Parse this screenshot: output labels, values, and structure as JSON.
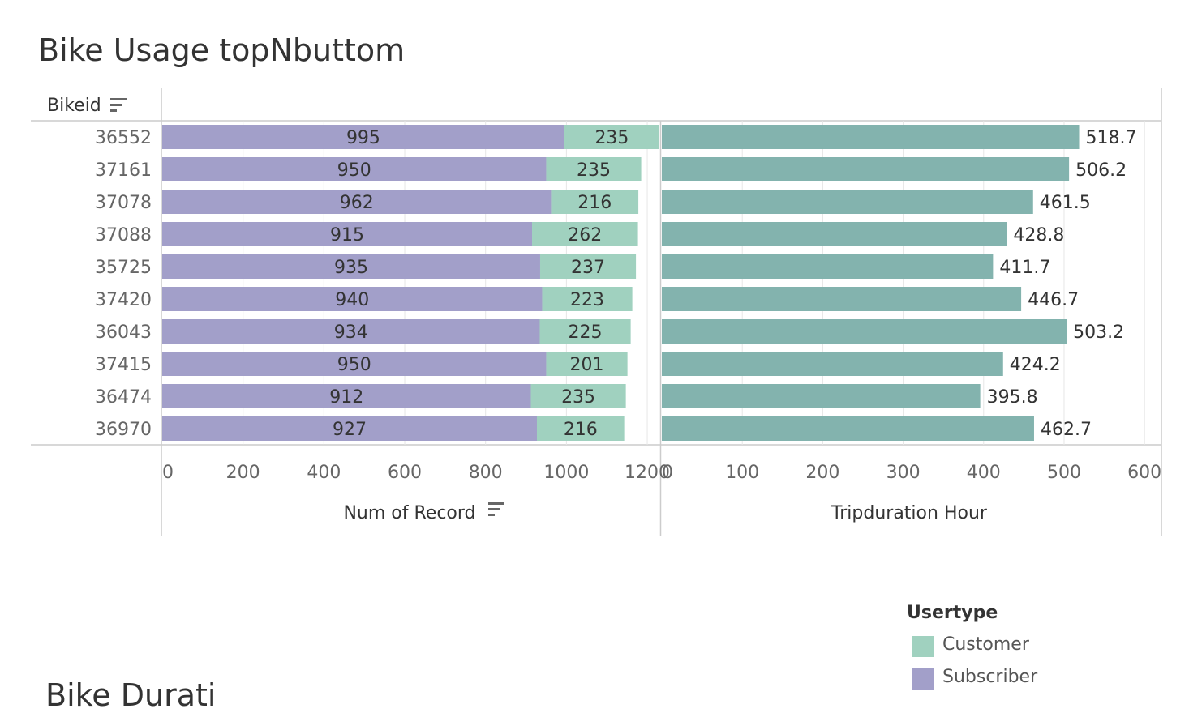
{
  "title": "Bike Usage topNbuttom",
  "next_title": "Bike Durati",
  "row_header": "Bikeid",
  "colors": {
    "subscriber": "#a29fc9",
    "customer": "#a0d1bf",
    "duration": "#83b3ae",
    "grid": "#e6e6e6",
    "axis": "#cccccc",
    "text": "#333333",
    "tick": "#666666"
  },
  "legend": {
    "title": "Usertype",
    "items": [
      {
        "label": "Customer",
        "color": "#a0d1bf"
      },
      {
        "label": "Subscriber",
        "color": "#a29fc9"
      }
    ]
  },
  "chart_data": [
    {
      "type": "bar",
      "orientation": "horizontal",
      "stacked": true,
      "xlabel": "Num of Record",
      "xlim": [
        0,
        1230
      ],
      "xticks": [
        0,
        200,
        400,
        600,
        800,
        1000,
        1200
      ],
      "grid": true,
      "categories": [
        "36552",
        "37161",
        "37078",
        "37088",
        "35725",
        "37420",
        "36043",
        "37415",
        "36474",
        "36970"
      ],
      "series": [
        {
          "name": "Subscriber",
          "values": [
            995,
            950,
            962,
            915,
            935,
            940,
            934,
            950,
            912,
            927
          ]
        },
        {
          "name": "Customer",
          "values": [
            235,
            235,
            216,
            262,
            237,
            223,
            225,
            201,
            235,
            216
          ]
        }
      ]
    },
    {
      "type": "bar",
      "orientation": "horizontal",
      "xlabel": "Tripduration Hour",
      "xlim": [
        0,
        620
      ],
      "xticks": [
        0,
        100,
        200,
        300,
        400,
        500,
        600
      ],
      "grid": true,
      "categories": [
        "36552",
        "37161",
        "37078",
        "37088",
        "35725",
        "37420",
        "36043",
        "37415",
        "36474",
        "36970"
      ],
      "values": [
        518.7,
        506.2,
        461.5,
        428.8,
        411.7,
        446.7,
        503.2,
        424.2,
        395.8,
        462.7
      ]
    }
  ]
}
